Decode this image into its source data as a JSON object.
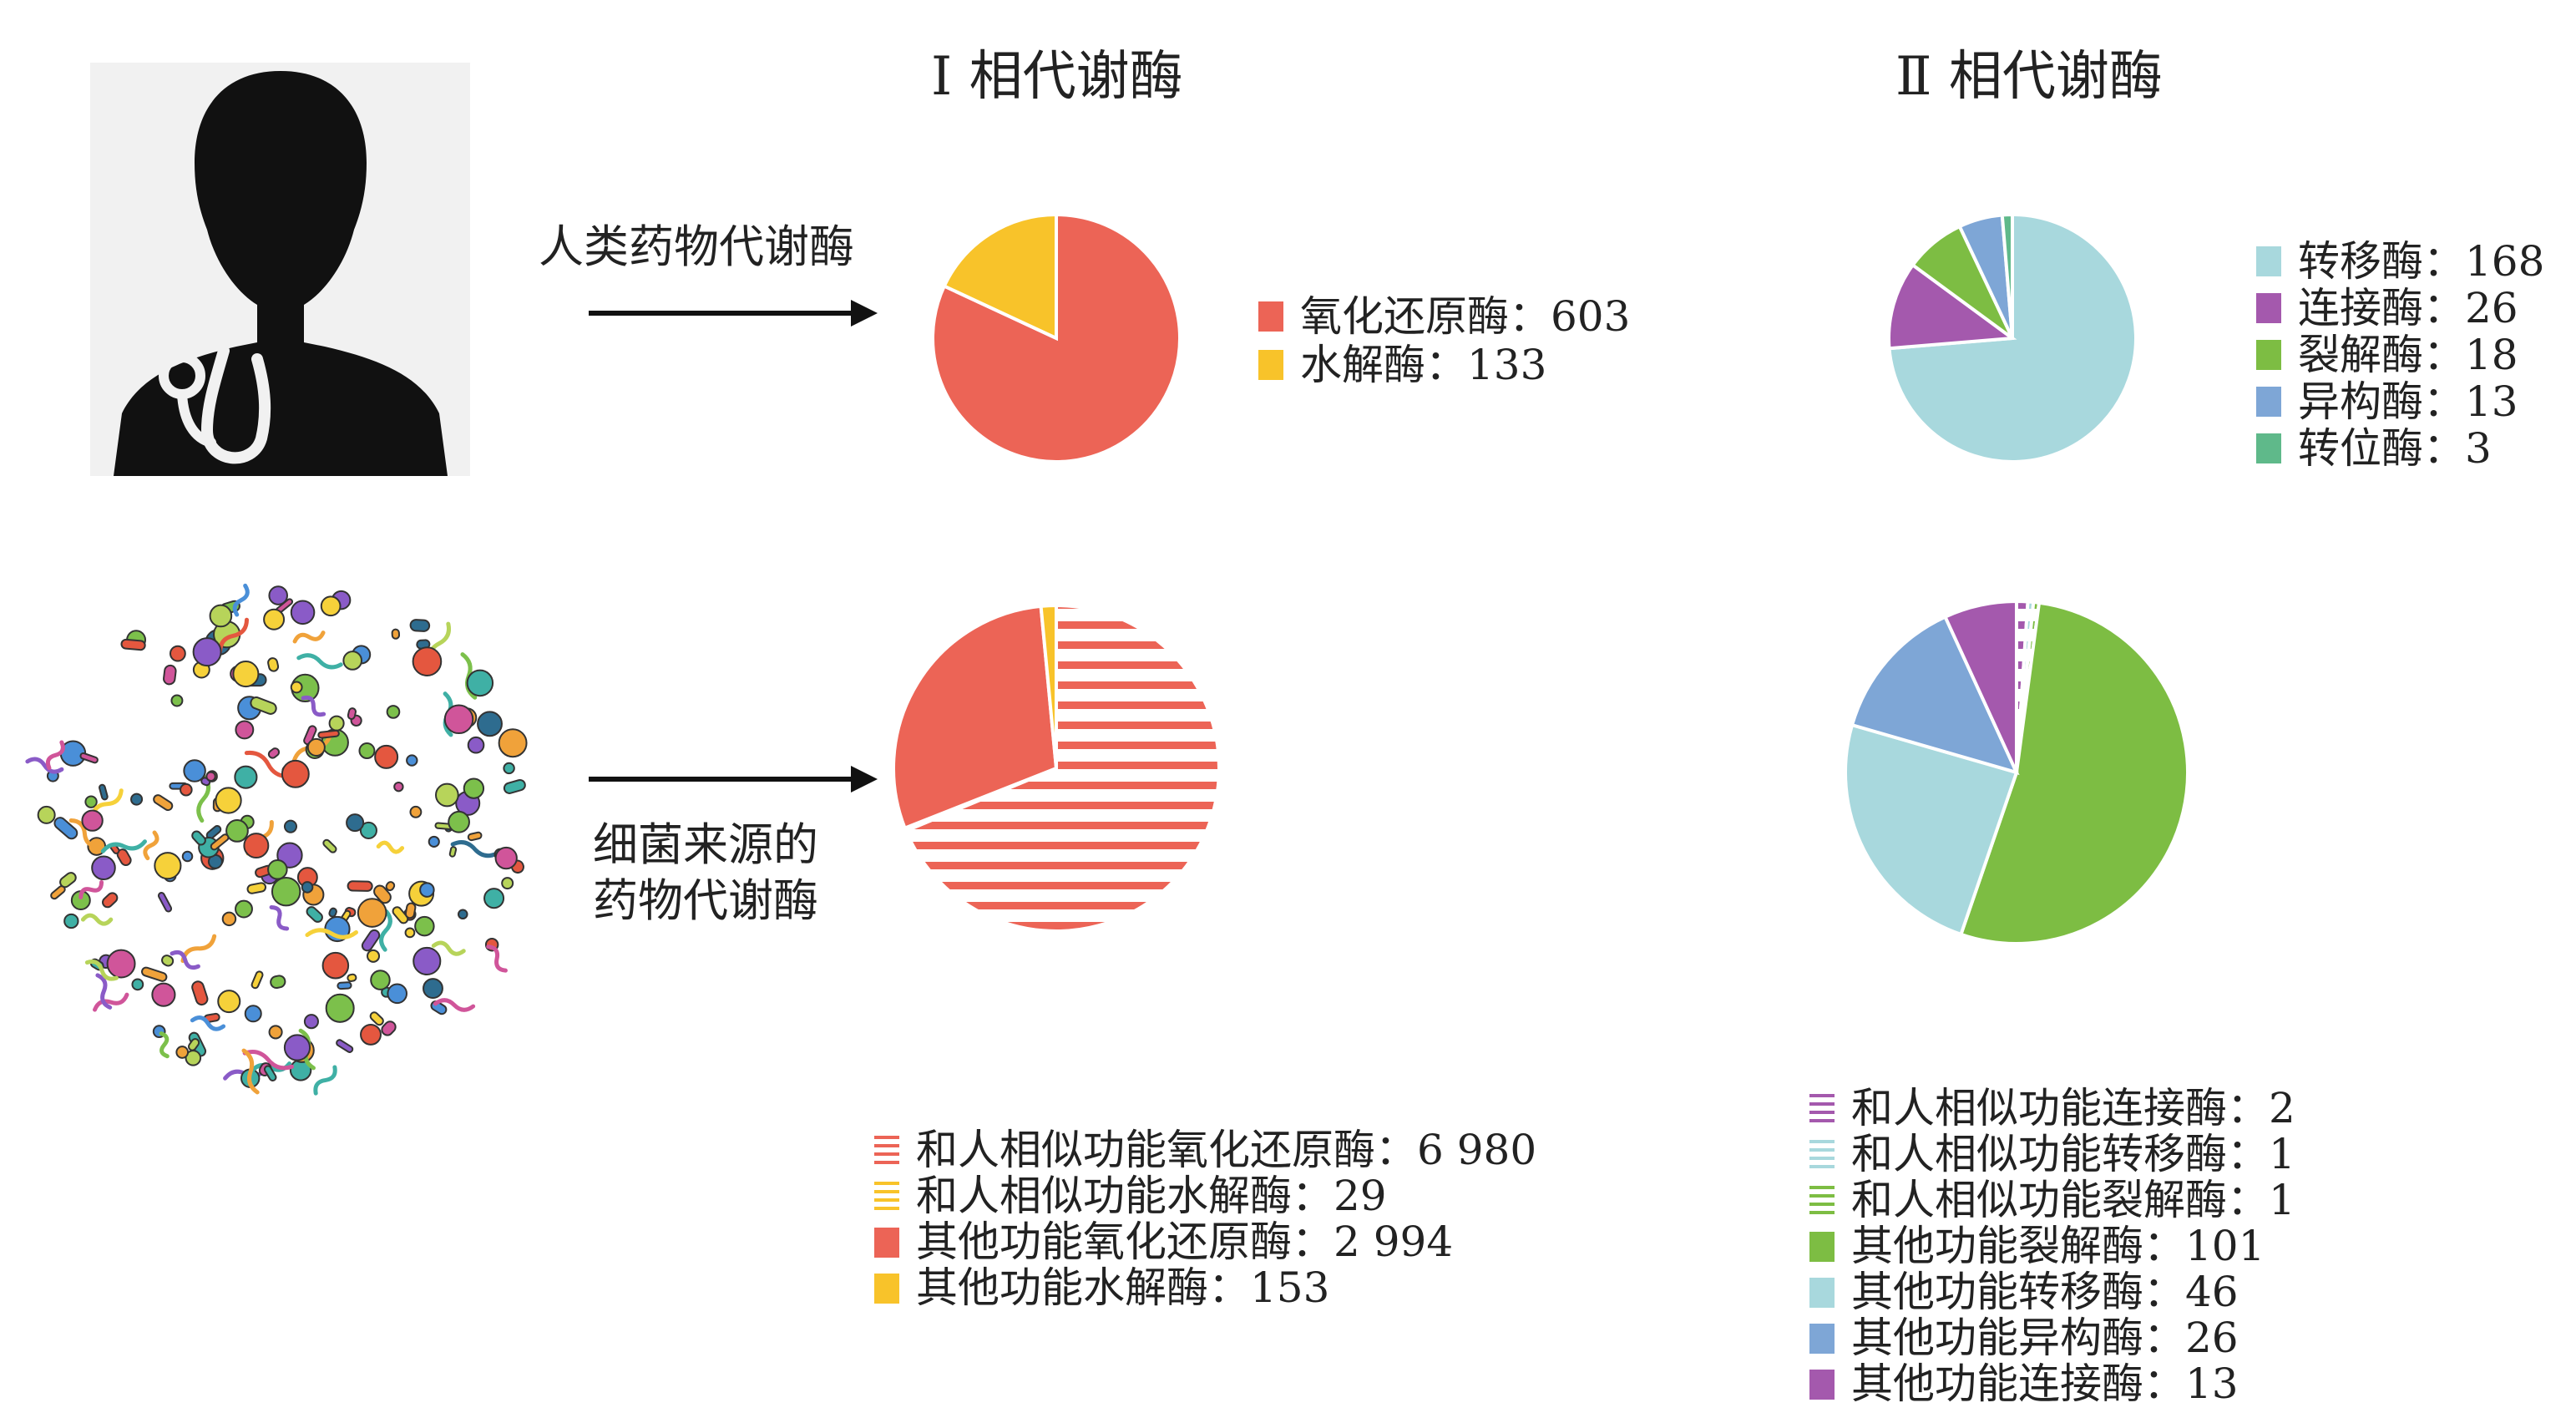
{
  "titles": {
    "phase1": "Ⅰ 相代谢酶",
    "phase2": "Ⅱ 相代谢酶"
  },
  "rows": {
    "human": {
      "label": "人类药物代谢酶",
      "icon": "doctor-stethoscope-icon"
    },
    "bacteria": {
      "label_line1": "细菌来源的",
      "label_line2": "药物代谢酶",
      "icon": "bacteria-collection-icon"
    }
  },
  "colors": {
    "red": "#ec6456",
    "yellow": "#f8c32a",
    "light_blue": "#a8d8dd",
    "purple": "#a459ad",
    "green": "#7dbd43",
    "blue": "#7ea6d6",
    "teal": "#5fb98a"
  },
  "chart_data": [
    {
      "type": "pie",
      "id": "human_phase1",
      "slices": [
        {
          "label": "氧化还原酶：603",
          "value": 603,
          "color": "#ec6456",
          "pattern": "solid"
        },
        {
          "label": "水解酶：133",
          "value": 133,
          "color": "#f8c32a",
          "pattern": "solid"
        }
      ]
    },
    {
      "type": "pie",
      "id": "human_phase2",
      "slices": [
        {
          "label": "转移酶：168",
          "value": 168,
          "color": "#a8d8dd",
          "pattern": "solid"
        },
        {
          "label": "连接酶：26",
          "value": 26,
          "color": "#a459ad",
          "pattern": "solid"
        },
        {
          "label": "裂解酶：18",
          "value": 18,
          "color": "#7dbd43",
          "pattern": "solid"
        },
        {
          "label": "异构酶：13",
          "value": 13,
          "color": "#7ea6d6",
          "pattern": "solid"
        },
        {
          "label": "转位酶：3",
          "value": 3,
          "color": "#5fb98a",
          "pattern": "solid"
        }
      ]
    },
    {
      "type": "pie",
      "id": "bacteria_phase1",
      "slices": [
        {
          "label": "和人相似功能氧化还原酶：6 980",
          "value": 6980,
          "color": "#ec6456",
          "pattern": "stripes"
        },
        {
          "label": "和人相似功能水解酶：29",
          "value": 29,
          "color": "#f8c32a",
          "pattern": "stripes"
        },
        {
          "label": "其他功能氧化还原酶：2 994",
          "value": 2994,
          "color": "#ec6456",
          "pattern": "solid"
        },
        {
          "label": "其他功能水解酶：153",
          "value": 153,
          "color": "#f8c32a",
          "pattern": "solid"
        }
      ]
    },
    {
      "type": "pie",
      "id": "bacteria_phase2",
      "slices": [
        {
          "label": "和人相似功能连接酶：2",
          "value": 2,
          "color": "#a459ad",
          "pattern": "stripes"
        },
        {
          "label": "和人相似功能转移酶：1",
          "value": 1,
          "color": "#a8d8dd",
          "pattern": "stripes"
        },
        {
          "label": "和人相似功能裂解酶：1",
          "value": 1,
          "color": "#7dbd43",
          "pattern": "stripes"
        },
        {
          "label": "其他功能裂解酶：101",
          "value": 101,
          "color": "#7dbd43",
          "pattern": "solid"
        },
        {
          "label": "其他功能转移酶：46",
          "value": 46,
          "color": "#a8d8dd",
          "pattern": "solid"
        },
        {
          "label": "其他功能异构酶：26",
          "value": 26,
          "color": "#7ea6d6",
          "pattern": "solid"
        },
        {
          "label": "其他功能连接酶：13",
          "value": 13,
          "color": "#a459ad",
          "pattern": "solid"
        }
      ]
    }
  ]
}
